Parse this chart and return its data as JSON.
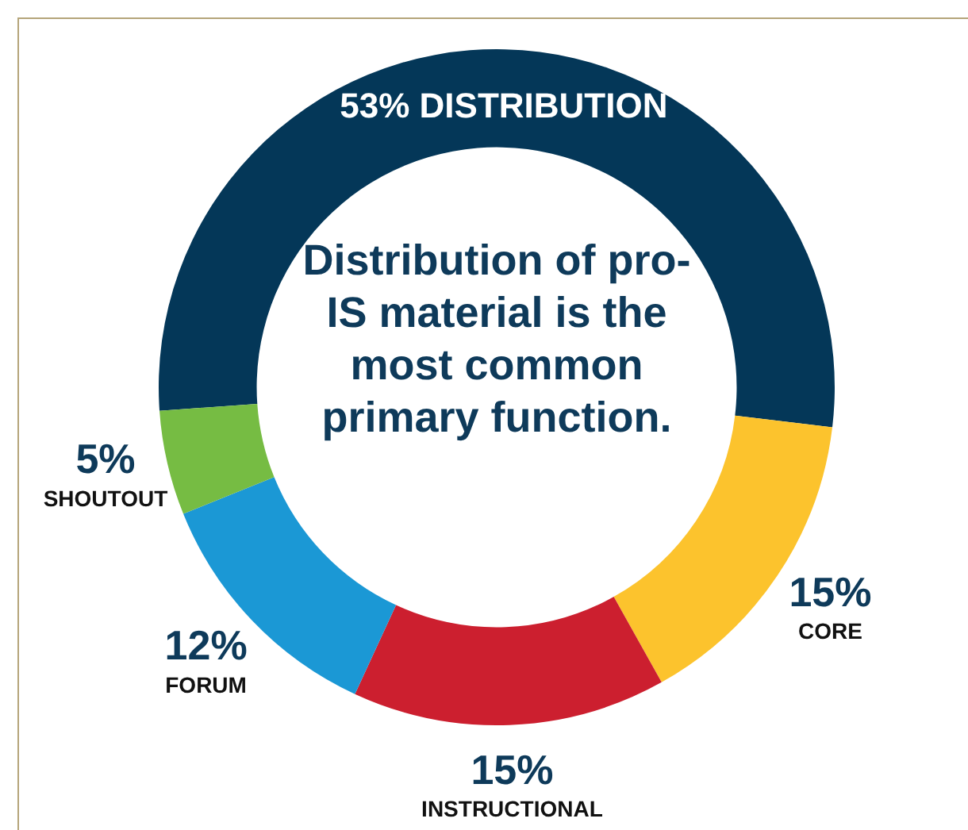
{
  "chart_data": {
    "type": "donut",
    "title": "Distribution of pro-IS material is the most common primary function.",
    "categories": [
      "DISTRIBUTION",
      "CORE",
      "INSTRUCTIONAL",
      "FORUM",
      "SHOUTOUT"
    ],
    "values": [
      53,
      15,
      15,
      12,
      5
    ],
    "colors": [
      "#043758",
      "#fcc32d",
      "#cc1f2f",
      "#1b98d5",
      "#76bc43"
    ],
    "value_labels": [
      "53%",
      "15%",
      "15%",
      "12%",
      "5%"
    ],
    "legend": false
  }
}
